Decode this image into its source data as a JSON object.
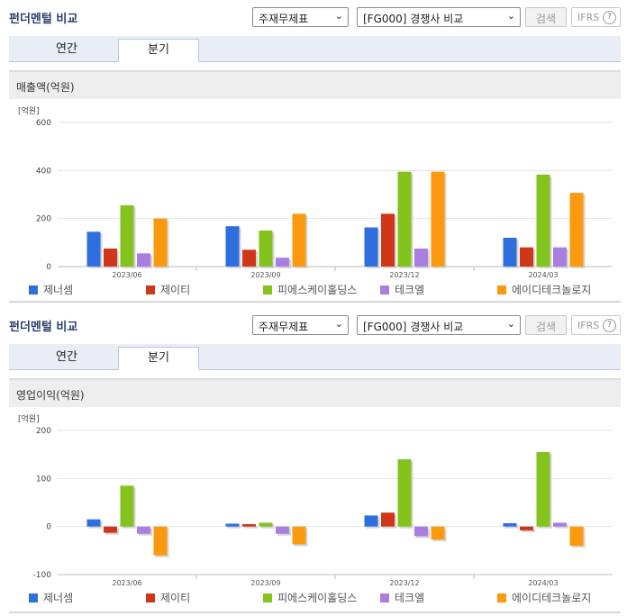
{
  "panels": [
    {
      "title": "펀더멘털 비교",
      "statement_select": "주재무제표",
      "compare_select": "[FG000] 경쟁사 비교",
      "search_label": "검색",
      "ifrs_label": "IFRS",
      "help_label": "?",
      "tabs": [
        {
          "label": "연간"
        },
        {
          "label": "분기"
        }
      ],
      "active_tab": 1,
      "section_title": "매출액(억원)",
      "chart_data": {
        "type": "bar",
        "unit": "[억원]",
        "categories": [
          "2023/06",
          "2023/09",
          "2023/12",
          "2024/03"
        ],
        "yticks": [
          0,
          200,
          400,
          600
        ],
        "ylim": [
          0,
          600
        ],
        "series": [
          {
            "name": "제너셈",
            "color": "#2f6fdd",
            "values": [
              145,
              168,
              163,
              120
            ]
          },
          {
            "name": "제이티",
            "color": "#d0371a",
            "values": [
              75,
              70,
              220,
              80
            ]
          },
          {
            "name": "피에스케이홀딩스",
            "color": "#84c21d",
            "values": [
              255,
              150,
              395,
              383
            ]
          },
          {
            "name": "테크엘",
            "color": "#a97ee0",
            "values": [
              55,
              37,
              75,
              80
            ]
          },
          {
            "name": "에이디테크놀로지",
            "color": "#fb9a0e",
            "values": [
              200,
              220,
              395,
              307
            ]
          }
        ]
      }
    },
    {
      "title": "펀더멘털 비교",
      "statement_select": "주재무제표",
      "compare_select": "[FG000] 경쟁사 비교",
      "search_label": "검색",
      "ifrs_label": "IFRS",
      "help_label": "?",
      "tabs": [
        {
          "label": "연간"
        },
        {
          "label": "분기"
        }
      ],
      "active_tab": 1,
      "section_title": "영업이익(억원)",
      "chart_data": {
        "type": "bar",
        "unit": "[억원]",
        "categories": [
          "2023/06",
          "2023/09",
          "2023/12",
          "2024/03"
        ],
        "yticks": [
          -100,
          0,
          100,
          200
        ],
        "ylim": [
          -100,
          200
        ],
        "series": [
          {
            "name": "제너셈",
            "color": "#2f6fdd",
            "values": [
              15,
              6,
              23,
              7
            ]
          },
          {
            "name": "제이티",
            "color": "#d0371a",
            "values": [
              -13,
              5,
              29,
              -8
            ]
          },
          {
            "name": "피에스케이홀딩스",
            "color": "#84c21d",
            "values": [
              85,
              8,
              140,
              155
            ]
          },
          {
            "name": "테크엘",
            "color": "#a97ee0",
            "values": [
              -15,
              -15,
              -20,
              8
            ]
          },
          {
            "name": "에이디테크놀로지",
            "color": "#fb9a0e",
            "values": [
              -60,
              -37,
              -27,
              -40
            ]
          }
        ]
      }
    }
  ]
}
